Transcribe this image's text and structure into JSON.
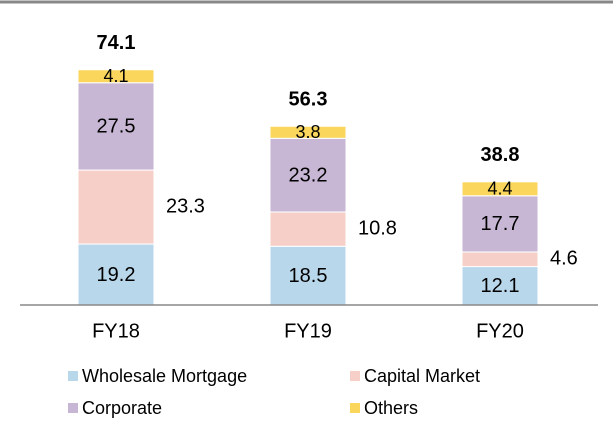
{
  "chart_data": {
    "type": "stacked-bar",
    "categories": [
      "FY18",
      "FY19",
      "FY20"
    ],
    "series": [
      {
        "name": "Wholesale Mortgage",
        "color": "#b9d7ea",
        "values": [
          19.2,
          18.5,
          12.1
        ]
      },
      {
        "name": "Capital Market",
        "color": "#f6d0c8",
        "values": [
          23.3,
          10.8,
          4.6
        ]
      },
      {
        "name": "Corporate",
        "color": "#c7b6d4",
        "values": [
          27.5,
          23.2,
          17.7
        ]
      },
      {
        "name": "Others",
        "color": "#fad75c",
        "values": [
          4.1,
          3.8,
          4.4
        ]
      }
    ],
    "totals": [
      74.1,
      56.3,
      38.8
    ],
    "ylim": [
      0,
      80
    ]
  }
}
